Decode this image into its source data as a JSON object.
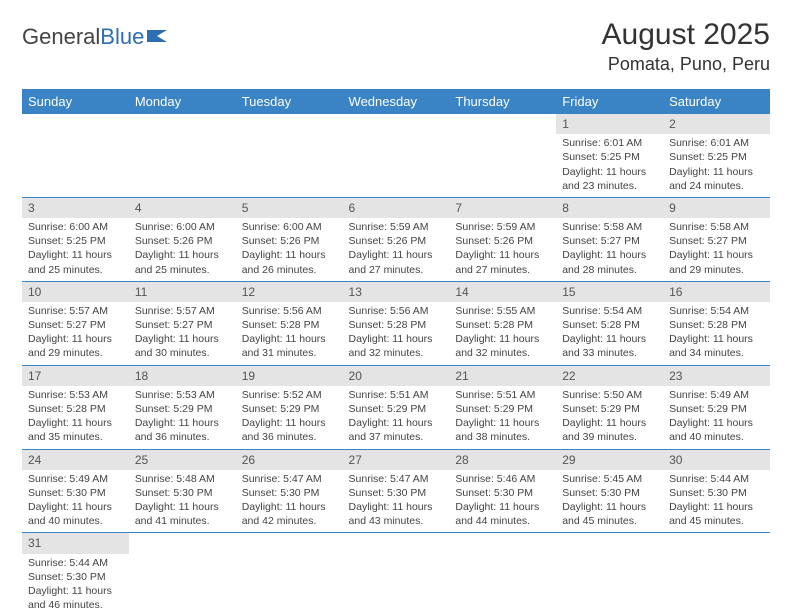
{
  "logo": {
    "text1": "General",
    "text2": "Blue"
  },
  "title": "August 2025",
  "location": "Pomata, Puno, Peru",
  "colors": {
    "header_bg": "#3a84c5",
    "daynum_bg": "#e4e4e4",
    "row_border": "#3a84c5"
  },
  "weekdays": [
    "Sunday",
    "Monday",
    "Tuesday",
    "Wednesday",
    "Thursday",
    "Friday",
    "Saturday"
  ],
  "weeks": [
    [
      null,
      null,
      null,
      null,
      null,
      {
        "n": "1",
        "sr": "Sunrise: 6:01 AM",
        "ss": "Sunset: 5:25 PM",
        "d1": "Daylight: 11 hours",
        "d2": "and 23 minutes."
      },
      {
        "n": "2",
        "sr": "Sunrise: 6:01 AM",
        "ss": "Sunset: 5:25 PM",
        "d1": "Daylight: 11 hours",
        "d2": "and 24 minutes."
      }
    ],
    [
      {
        "n": "3",
        "sr": "Sunrise: 6:00 AM",
        "ss": "Sunset: 5:25 PM",
        "d1": "Daylight: 11 hours",
        "d2": "and 25 minutes."
      },
      {
        "n": "4",
        "sr": "Sunrise: 6:00 AM",
        "ss": "Sunset: 5:26 PM",
        "d1": "Daylight: 11 hours",
        "d2": "and 25 minutes."
      },
      {
        "n": "5",
        "sr": "Sunrise: 6:00 AM",
        "ss": "Sunset: 5:26 PM",
        "d1": "Daylight: 11 hours",
        "d2": "and 26 minutes."
      },
      {
        "n": "6",
        "sr": "Sunrise: 5:59 AM",
        "ss": "Sunset: 5:26 PM",
        "d1": "Daylight: 11 hours",
        "d2": "and 27 minutes."
      },
      {
        "n": "7",
        "sr": "Sunrise: 5:59 AM",
        "ss": "Sunset: 5:26 PM",
        "d1": "Daylight: 11 hours",
        "d2": "and 27 minutes."
      },
      {
        "n": "8",
        "sr": "Sunrise: 5:58 AM",
        "ss": "Sunset: 5:27 PM",
        "d1": "Daylight: 11 hours",
        "d2": "and 28 minutes."
      },
      {
        "n": "9",
        "sr": "Sunrise: 5:58 AM",
        "ss": "Sunset: 5:27 PM",
        "d1": "Daylight: 11 hours",
        "d2": "and 29 minutes."
      }
    ],
    [
      {
        "n": "10",
        "sr": "Sunrise: 5:57 AM",
        "ss": "Sunset: 5:27 PM",
        "d1": "Daylight: 11 hours",
        "d2": "and 29 minutes."
      },
      {
        "n": "11",
        "sr": "Sunrise: 5:57 AM",
        "ss": "Sunset: 5:27 PM",
        "d1": "Daylight: 11 hours",
        "d2": "and 30 minutes."
      },
      {
        "n": "12",
        "sr": "Sunrise: 5:56 AM",
        "ss": "Sunset: 5:28 PM",
        "d1": "Daylight: 11 hours",
        "d2": "and 31 minutes."
      },
      {
        "n": "13",
        "sr": "Sunrise: 5:56 AM",
        "ss": "Sunset: 5:28 PM",
        "d1": "Daylight: 11 hours",
        "d2": "and 32 minutes."
      },
      {
        "n": "14",
        "sr": "Sunrise: 5:55 AM",
        "ss": "Sunset: 5:28 PM",
        "d1": "Daylight: 11 hours",
        "d2": "and 32 minutes."
      },
      {
        "n": "15",
        "sr": "Sunrise: 5:54 AM",
        "ss": "Sunset: 5:28 PM",
        "d1": "Daylight: 11 hours",
        "d2": "and 33 minutes."
      },
      {
        "n": "16",
        "sr": "Sunrise: 5:54 AM",
        "ss": "Sunset: 5:28 PM",
        "d1": "Daylight: 11 hours",
        "d2": "and 34 minutes."
      }
    ],
    [
      {
        "n": "17",
        "sr": "Sunrise: 5:53 AM",
        "ss": "Sunset: 5:28 PM",
        "d1": "Daylight: 11 hours",
        "d2": "and 35 minutes."
      },
      {
        "n": "18",
        "sr": "Sunrise: 5:53 AM",
        "ss": "Sunset: 5:29 PM",
        "d1": "Daylight: 11 hours",
        "d2": "and 36 minutes."
      },
      {
        "n": "19",
        "sr": "Sunrise: 5:52 AM",
        "ss": "Sunset: 5:29 PM",
        "d1": "Daylight: 11 hours",
        "d2": "and 36 minutes."
      },
      {
        "n": "20",
        "sr": "Sunrise: 5:51 AM",
        "ss": "Sunset: 5:29 PM",
        "d1": "Daylight: 11 hours",
        "d2": "and 37 minutes."
      },
      {
        "n": "21",
        "sr": "Sunrise: 5:51 AM",
        "ss": "Sunset: 5:29 PM",
        "d1": "Daylight: 11 hours",
        "d2": "and 38 minutes."
      },
      {
        "n": "22",
        "sr": "Sunrise: 5:50 AM",
        "ss": "Sunset: 5:29 PM",
        "d1": "Daylight: 11 hours",
        "d2": "and 39 minutes."
      },
      {
        "n": "23",
        "sr": "Sunrise: 5:49 AM",
        "ss": "Sunset: 5:29 PM",
        "d1": "Daylight: 11 hours",
        "d2": "and 40 minutes."
      }
    ],
    [
      {
        "n": "24",
        "sr": "Sunrise: 5:49 AM",
        "ss": "Sunset: 5:30 PM",
        "d1": "Daylight: 11 hours",
        "d2": "and 40 minutes."
      },
      {
        "n": "25",
        "sr": "Sunrise: 5:48 AM",
        "ss": "Sunset: 5:30 PM",
        "d1": "Daylight: 11 hours",
        "d2": "and 41 minutes."
      },
      {
        "n": "26",
        "sr": "Sunrise: 5:47 AM",
        "ss": "Sunset: 5:30 PM",
        "d1": "Daylight: 11 hours",
        "d2": "and 42 minutes."
      },
      {
        "n": "27",
        "sr": "Sunrise: 5:47 AM",
        "ss": "Sunset: 5:30 PM",
        "d1": "Daylight: 11 hours",
        "d2": "and 43 minutes."
      },
      {
        "n": "28",
        "sr": "Sunrise: 5:46 AM",
        "ss": "Sunset: 5:30 PM",
        "d1": "Daylight: 11 hours",
        "d2": "and 44 minutes."
      },
      {
        "n": "29",
        "sr": "Sunrise: 5:45 AM",
        "ss": "Sunset: 5:30 PM",
        "d1": "Daylight: 11 hours",
        "d2": "and 45 minutes."
      },
      {
        "n": "30",
        "sr": "Sunrise: 5:44 AM",
        "ss": "Sunset: 5:30 PM",
        "d1": "Daylight: 11 hours",
        "d2": "and 45 minutes."
      }
    ],
    [
      {
        "n": "31",
        "sr": "Sunrise: 5:44 AM",
        "ss": "Sunset: 5:30 PM",
        "d1": "Daylight: 11 hours",
        "d2": "and 46 minutes."
      },
      null,
      null,
      null,
      null,
      null,
      null
    ]
  ]
}
